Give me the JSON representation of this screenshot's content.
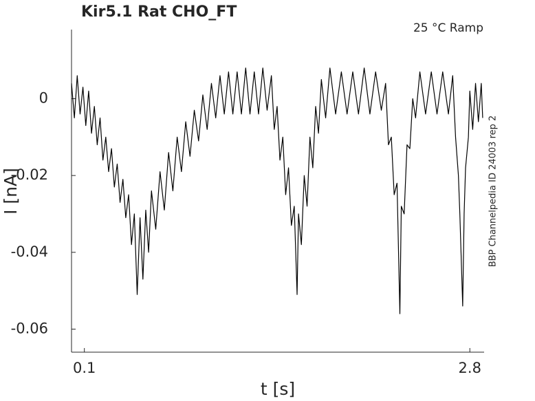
{
  "chart_data": {
    "type": "line",
    "title": "Kir5.1  Rat  CHO_FT",
    "annotation": "25 °C  Ramp",
    "side_note": "BBP Channelpedia ID 24003 rep 2",
    "xlabel": "t [s]",
    "ylabel": "I [nA]",
    "color": "#000000",
    "xlim": [
      0.01,
      2.9
    ],
    "ylim": [
      -0.066,
      0.018
    ],
    "xticks": [
      0.1,
      2.8
    ],
    "yticks": [
      0,
      -0.02,
      -0.04,
      -0.06
    ],
    "grid": false,
    "x": [
      0.01,
      0.03,
      0.05,
      0.07,
      0.09,
      0.11,
      0.13,
      0.15,
      0.17,
      0.19,
      0.21,
      0.23,
      0.25,
      0.27,
      0.29,
      0.31,
      0.33,
      0.35,
      0.37,
      0.39,
      0.41,
      0.43,
      0.45,
      0.47,
      0.49,
      0.51,
      0.53,
      0.55,
      0.57,
      0.6,
      0.63,
      0.66,
      0.69,
      0.72,
      0.75,
      0.78,
      0.81,
      0.84,
      0.87,
      0.9,
      0.93,
      0.96,
      0.99,
      1.02,
      1.05,
      1.08,
      1.11,
      1.14,
      1.17,
      1.2,
      1.23,
      1.26,
      1.29,
      1.32,
      1.35,
      1.38,
      1.41,
      1.43,
      1.45,
      1.47,
      1.49,
      1.51,
      1.53,
      1.55,
      1.57,
      1.59,
      1.6,
      1.62,
      1.64,
      1.66,
      1.68,
      1.7,
      1.72,
      1.74,
      1.76,
      1.79,
      1.82,
      1.86,
      1.9,
      1.94,
      1.98,
      2.02,
      2.06,
      2.1,
      2.14,
      2.18,
      2.21,
      2.23,
      2.25,
      2.27,
      2.29,
      2.31,
      2.32,
      2.34,
      2.36,
      2.38,
      2.4,
      2.42,
      2.45,
      2.49,
      2.53,
      2.57,
      2.61,
      2.65,
      2.68,
      2.7,
      2.72,
      2.73,
      2.75,
      2.76,
      2.77,
      2.79,
      2.8,
      2.82,
      2.84,
      2.86,
      2.88,
      2.89
    ],
    "values": [
      0.004,
      -0.005,
      0.006,
      -0.004,
      0.003,
      -0.007,
      0.002,
      -0.009,
      -0.002,
      -0.012,
      -0.005,
      -0.016,
      -0.01,
      -0.019,
      -0.013,
      -0.023,
      -0.017,
      -0.027,
      -0.021,
      -0.031,
      -0.025,
      -0.038,
      -0.03,
      -0.051,
      -0.031,
      -0.047,
      -0.029,
      -0.04,
      -0.024,
      -0.034,
      -0.019,
      -0.029,
      -0.014,
      -0.024,
      -0.01,
      -0.019,
      -0.006,
      -0.015,
      -0.003,
      -0.011,
      0.001,
      -0.008,
      0.004,
      -0.005,
      0.006,
      -0.004,
      0.007,
      -0.004,
      0.007,
      -0.004,
      0.008,
      -0.004,
      0.007,
      -0.004,
      0.008,
      -0.003,
      0.006,
      -0.008,
      -0.002,
      -0.016,
      -0.01,
      -0.025,
      -0.018,
      -0.033,
      -0.028,
      -0.051,
      -0.03,
      -0.038,
      -0.02,
      -0.028,
      -0.01,
      -0.018,
      -0.002,
      -0.009,
      0.005,
      -0.005,
      0.008,
      -0.004,
      0.007,
      -0.004,
      0.007,
      -0.004,
      0.008,
      -0.004,
      0.007,
      -0.003,
      0.004,
      -0.012,
      -0.01,
      -0.025,
      -0.022,
      -0.056,
      -0.028,
      -0.03,
      -0.012,
      -0.013,
      0.0,
      -0.005,
      0.007,
      -0.004,
      0.007,
      -0.004,
      0.007,
      -0.004,
      0.006,
      -0.01,
      -0.02,
      -0.03,
      -0.054,
      -0.03,
      -0.018,
      -0.01,
      0.002,
      -0.008,
      0.004,
      -0.006,
      0.004,
      -0.005
    ]
  }
}
